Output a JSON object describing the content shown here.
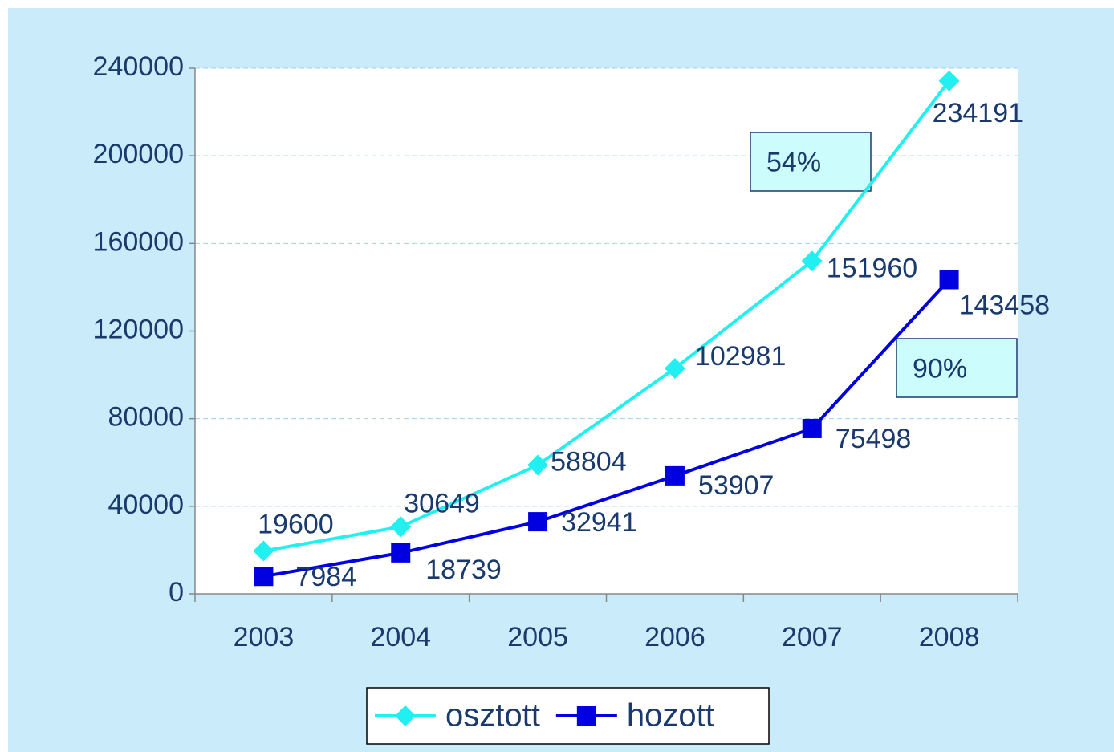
{
  "chart_data": {
    "type": "line",
    "categories": [
      "2003",
      "2004",
      "2005",
      "2006",
      "2007",
      "2008"
    ],
    "series": [
      {
        "name": "osztott",
        "color": "#22f0f0",
        "marker": "diamond",
        "values": [
          19600,
          30649,
          58804,
          102981,
          151960,
          234191
        ]
      },
      {
        "name": "hozott",
        "color": "#0000e0",
        "marker": "square",
        "values": [
          7984,
          18739,
          32941,
          53907,
          75498,
          143458
        ]
      }
    ],
    "ylim": [
      0,
      240000
    ],
    "yticks": [
      0,
      40000,
      80000,
      120000,
      160000,
      200000,
      240000
    ],
    "grid": true,
    "legend": "bottom",
    "annotations": [
      {
        "text": "54%"
      },
      {
        "text": "90%"
      }
    ]
  }
}
